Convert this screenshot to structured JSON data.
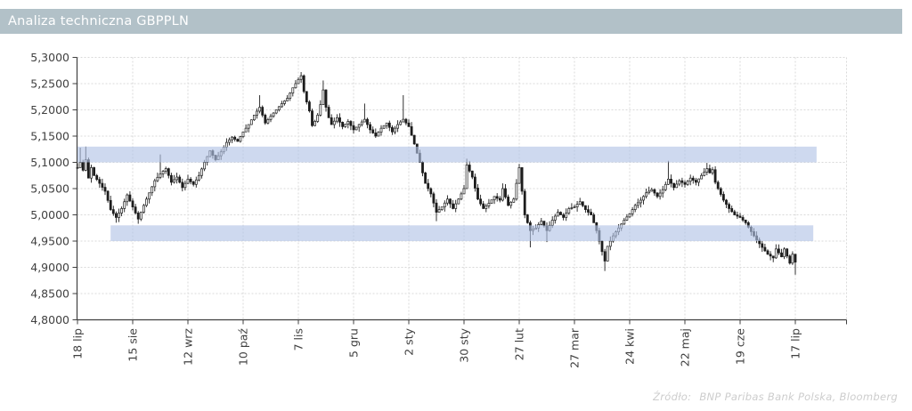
{
  "title": "Analiza techniczna GBPPLN",
  "footer": {
    "source_label": "Źródło:",
    "source_text": "BNP Paribas Bank Polska, Bloomberg"
  },
  "colors": {
    "title_bar_bg": "#b2c1c8",
    "title_text": "#ffffff",
    "axis": "#404040",
    "grid": "#d9d9d9",
    "candle": "#1c1c1c",
    "candle_up_fill": "#ffffff",
    "band": "rgba(177,195,230,0.63)",
    "source_color": "#cdcdcd"
  },
  "chart_data": {
    "type": "candlestick",
    "instrument": "GBPPLN",
    "title": "Analiza techniczna GBPPLN",
    "grid": "dashed",
    "y_axis": {
      "min": 4.8,
      "max": 5.3,
      "tick_step": 0.05,
      "tick_labels": [
        "5,3000",
        "5,2500",
        "5,2000",
        "5,1500",
        "5,1000",
        "5,0500",
        "5,0000",
        "4,9500",
        "4,9000",
        "4,8500",
        "4,8000"
      ]
    },
    "x_axis": {
      "tick_labels": [
        "18 lip",
        "15 sie",
        "12 wrz",
        "10 paź",
        "7 lis",
        "5 gru",
        "2 sty",
        "30 sty",
        "27 lut",
        "27 mar",
        "24 kwi",
        "22 maj",
        "19 cze",
        "17 lip"
      ],
      "trading_days_per_tick": 20,
      "total_days": 260
    },
    "bands": [
      {
        "name": "resistance-zone",
        "price_from": 5.1,
        "price_to": 5.13,
        "day_from": 0,
        "day_to": 267.7
      },
      {
        "name": "support-zone",
        "price_from": 4.95,
        "price_to": 4.98,
        "day_from": 12,
        "day_to": 266.5
      }
    ],
    "wick_amplitude": 0.009,
    "anchors": [
      [
        0,
        5.09
      ],
      [
        1,
        5.1,
        5.128
      ],
      [
        2,
        5.085
      ],
      [
        3,
        5.105,
        5.13
      ],
      [
        4,
        5.07
      ],
      [
        5,
        5.09
      ],
      [
        6,
        5.075
      ],
      [
        8,
        5.06
      ],
      [
        10,
        5.045
      ],
      [
        12,
        5.01
      ],
      [
        14,
        4.995,
        null,
        4.985
      ],
      [
        16,
        5.012
      ],
      [
        18,
        5.038
      ],
      [
        20,
        5.015
      ],
      [
        22,
        4.992,
        null,
        4.983
      ],
      [
        24,
        5.018
      ],
      [
        26,
        5.042
      ],
      [
        28,
        5.065
      ],
      [
        30,
        5.078,
        5.115
      ],
      [
        32,
        5.088
      ],
      [
        34,
        5.062
      ],
      [
        36,
        5.072
      ],
      [
        38,
        5.052
      ],
      [
        40,
        5.068
      ],
      [
        42,
        5.058
      ],
      [
        44,
        5.075
      ],
      [
        46,
        5.1
      ],
      [
        48,
        5.122
      ],
      [
        50,
        5.105
      ],
      [
        52,
        5.12
      ],
      [
        54,
        5.138
      ],
      [
        56,
        5.148
      ],
      [
        58,
        5.14
      ],
      [
        60,
        5.158
      ],
      [
        62,
        5.172
      ],
      [
        64,
        5.19
      ],
      [
        66,
        5.205,
        5.228
      ],
      [
        68,
        5.175
      ],
      [
        70,
        5.188
      ],
      [
        72,
        5.2
      ],
      [
        74,
        5.212
      ],
      [
        76,
        5.222
      ],
      [
        78,
        5.242
      ],
      [
        80,
        5.258
      ],
      [
        81,
        5.265,
        5.272
      ],
      [
        82,
        5.235
      ],
      [
        83,
        5.215
      ],
      [
        84,
        5.198
      ],
      [
        85,
        5.17
      ],
      [
        86,
        5.178
      ],
      [
        87,
        5.19
      ],
      [
        88,
        5.21
      ],
      [
        89,
        5.238,
        5.256
      ],
      [
        90,
        5.205
      ],
      [
        91,
        5.185
      ],
      [
        92,
        5.172
      ],
      [
        94,
        5.185
      ],
      [
        96,
        5.168
      ],
      [
        98,
        5.178
      ],
      [
        100,
        5.162
      ],
      [
        102,
        5.172
      ],
      [
        104,
        5.182,
        5.212
      ],
      [
        106,
        5.162
      ],
      [
        108,
        5.15
      ],
      [
        110,
        5.165
      ],
      [
        112,
        5.175
      ],
      [
        114,
        5.158
      ],
      [
        116,
        5.172
      ],
      [
        118,
        5.182,
        5.228
      ],
      [
        120,
        5.168
      ],
      [
        122,
        5.135
      ],
      [
        124,
        5.1
      ],
      [
        126,
        5.06
      ],
      [
        128,
        5.04
      ],
      [
        130,
        5.005,
        null,
        4.988
      ],
      [
        132,
        5.015
      ],
      [
        134,
        5.03
      ],
      [
        136,
        5.012
      ],
      [
        138,
        5.03
      ],
      [
        140,
        5.05
      ],
      [
        141,
        5.095,
        5.107
      ],
      [
        143,
        5.072
      ],
      [
        145,
        5.03
      ],
      [
        147,
        5.012
      ],
      [
        149,
        5.022
      ],
      [
        151,
        5.035
      ],
      [
        153,
        5.028
      ],
      [
        154,
        5.05,
        5.06
      ],
      [
        156,
        5.018
      ],
      [
        158,
        5.03
      ],
      [
        160,
        5.09,
        5.097
      ],
      [
        162,
        5.0
      ],
      [
        164,
        4.97,
        null,
        4.938
      ],
      [
        166,
        4.975
      ],
      [
        168,
        4.988
      ],
      [
        170,
        4.97,
        null,
        4.948
      ],
      [
        172,
        4.99
      ],
      [
        174,
        5.005
      ],
      [
        176,
        4.995
      ],
      [
        178,
        5.012
      ],
      [
        180,
        5.015
      ],
      [
        182,
        5.025
      ],
      [
        184,
        5.01
      ],
      [
        186,
        5.0
      ],
      [
        188,
        4.97
      ],
      [
        190,
        4.93
      ],
      [
        191,
        4.912,
        null,
        4.893
      ],
      [
        192,
        4.94
      ],
      [
        194,
        4.96
      ],
      [
        196,
        4.975
      ],
      [
        198,
        4.99
      ],
      [
        200,
        5.002
      ],
      [
        202,
        5.018
      ],
      [
        204,
        5.028
      ],
      [
        206,
        5.042
      ],
      [
        208,
        5.048
      ],
      [
        210,
        5.035
      ],
      [
        212,
        5.048
      ],
      [
        214,
        5.068,
        5.103
      ],
      [
        216,
        5.052
      ],
      [
        218,
        5.065
      ],
      [
        220,
        5.058
      ],
      [
        222,
        5.07
      ],
      [
        224,
        5.062
      ],
      [
        226,
        5.075
      ],
      [
        228,
        5.088,
        5.099
      ],
      [
        229,
        5.08
      ],
      [
        230,
        5.086
      ],
      [
        231,
        5.062
      ],
      [
        232,
        5.05
      ],
      [
        234,
        5.028
      ],
      [
        236,
        5.012
      ],
      [
        238,
        5.0
      ],
      [
        240,
        4.995
      ],
      [
        242,
        4.985
      ],
      [
        244,
        4.968
      ],
      [
        246,
        4.952
      ],
      [
        248,
        4.938
      ],
      [
        250,
        4.925
      ],
      [
        252,
        4.918
      ],
      [
        253,
        4.935
      ],
      [
        255,
        4.92
      ],
      [
        256,
        4.935
      ],
      [
        258,
        4.908
      ],
      [
        259,
        4.925
      ],
      [
        260,
        4.91,
        null,
        4.886
      ]
    ]
  }
}
